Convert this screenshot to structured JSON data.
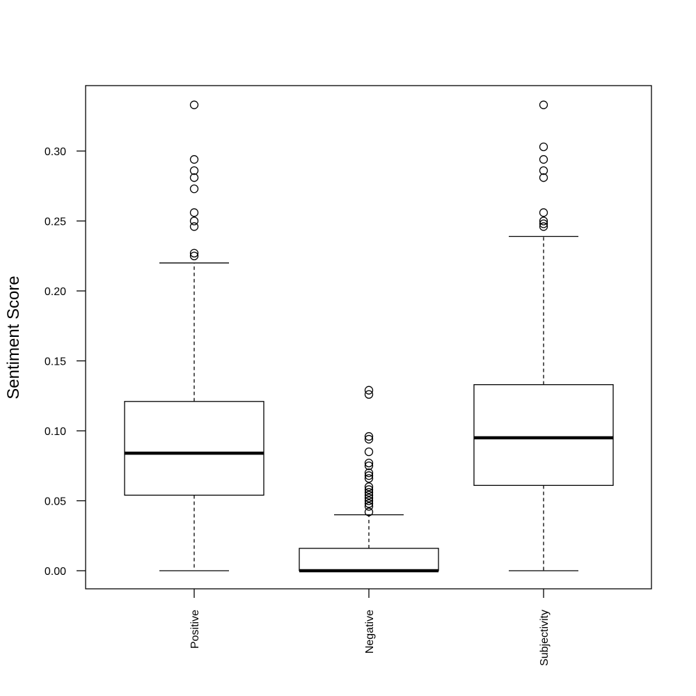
{
  "chart_data": {
    "type": "boxplot",
    "title": "",
    "xlabel": "",
    "ylabel": "Sentiment Score",
    "ylim": [
      -0.013,
      0.348
    ],
    "yticks": [
      0.0,
      0.05,
      0.1,
      0.15,
      0.2,
      0.25,
      0.3
    ],
    "ytick_labels": [
      "0.00",
      "0.05",
      "0.10",
      "0.15",
      "0.20",
      "0.25",
      "0.30"
    ],
    "grid": false,
    "legend": "none",
    "colors": {
      "stroke": "#000000",
      "box_fill": "#ffffff"
    },
    "categories": [
      "Positive",
      "Negative",
      "Subjectivity"
    ],
    "boxes": [
      {
        "category": "Positive",
        "whisker_low": 0.0,
        "q1": 0.054,
        "median": 0.084,
        "q3": 0.121,
        "whisker_high": 0.22,
        "outliers": [
          0.333,
          0.294,
          0.286,
          0.281,
          0.273,
          0.256,
          0.25,
          0.246,
          0.227,
          0.225
        ]
      },
      {
        "category": "Negative",
        "whisker_low": 0.0,
        "q1": 0.0,
        "median": 0.0,
        "q3": 0.016,
        "whisker_high": 0.04,
        "outliers": [
          0.129,
          0.126,
          0.096,
          0.094,
          0.085,
          0.077,
          0.075,
          0.07,
          0.068,
          0.066,
          0.06,
          0.058,
          0.056,
          0.054,
          0.052,
          0.05,
          0.048,
          0.046,
          0.042
        ]
      },
      {
        "category": "Subjectivity",
        "whisker_low": 0.0,
        "q1": 0.061,
        "median": 0.095,
        "q3": 0.133,
        "whisker_high": 0.239,
        "outliers": [
          0.333,
          0.303,
          0.294,
          0.286,
          0.281,
          0.256,
          0.25,
          0.248,
          0.246
        ]
      }
    ]
  }
}
